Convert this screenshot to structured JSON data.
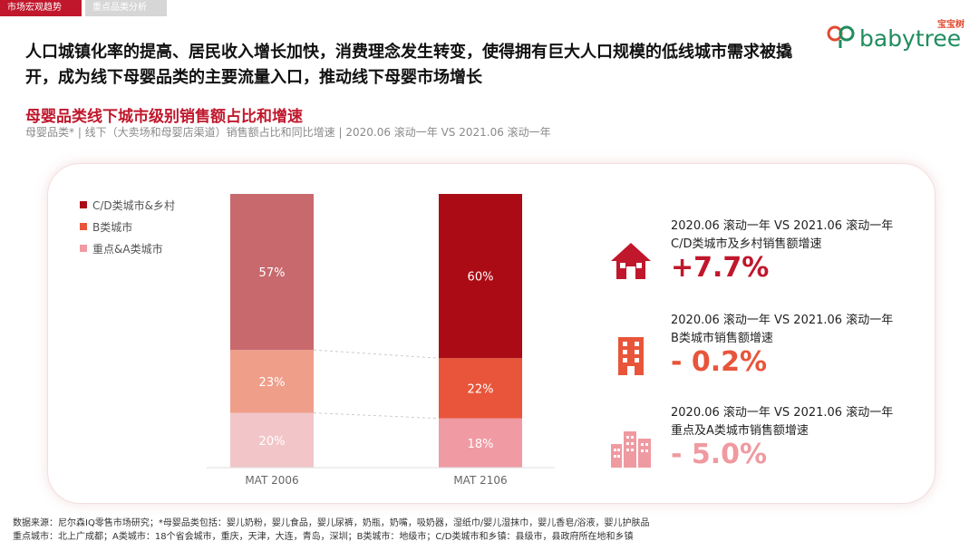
{
  "tabs": [
    "市场宏观趋势",
    "重点品类分析"
  ],
  "logo": {
    "cn": "宝宝树",
    "en": "babytree"
  },
  "headline": "人口城镇化率的提高、居民收入增长加快，消费理念发生转变，使得拥有巨大人口规模的低线城市需求被撬开，成为线下母婴品类的主要流量入口，推动线下母婴市场增长",
  "colors": {
    "accent": "#c0172c",
    "mat2006": [
      "#f2c6c8",
      "#ef9e8a",
      "#c8696e"
    ],
    "mat2106": [
      "#f09aa3",
      "#e8553a",
      "#ab0b14"
    ],
    "positive": "#c0172c",
    "neutral": "#e8553a",
    "negative": "#ef9aa0"
  },
  "chart_data": {
    "type": "bar",
    "stacked": true,
    "title": "母婴品类线下城市级别销售额占比和增速",
    "subtitle": "母婴品类* | 线下（大卖场和母婴店渠道）销售额占比和同比增速 | 2020.06 滚动一年 VS 2021.06 滚动一年",
    "categories": [
      "MAT 2006",
      "MAT 2106"
    ],
    "series": [
      {
        "name": "重点&A类城市",
        "values": [
          20,
          18
        ],
        "labels": [
          "20%",
          "18%"
        ]
      },
      {
        "name": "B类城市",
        "values": [
          23,
          22
        ],
        "labels": [
          "23%",
          "22%"
        ]
      },
      {
        "name": "C/D类城市&乡村",
        "values": [
          57,
          60
        ],
        "labels": [
          "57%",
          "60%"
        ]
      }
    ],
    "legend": [
      "C/D类城市&乡村",
      "B类城市",
      "重点&A类城市"
    ],
    "ylim": [
      0,
      100
    ]
  },
  "stats": [
    {
      "period": "2020.06 滚动一年 VS 2021.06 滚动一年",
      "label": "C/D类城市及乡村销售额增速",
      "value": "+7.7%",
      "icon": "house-icon"
    },
    {
      "period": "2020.06 滚动一年 VS 2021.06 滚动一年",
      "label": "B类城市销售额增速",
      "value": "- 0.2%",
      "icon": "building-icon"
    },
    {
      "period": "2020.06 滚动一年 VS 2021.06 滚动一年",
      "label": "重点及A类城市销售额增速",
      "value": "- 5.0%",
      "icon": "city-icon"
    }
  ],
  "footer": {
    "line1": "数据来源：尼尔森IQ零售市场研究；*母婴品类包括：婴儿奶粉，婴儿食品，婴儿尿裤，奶瓶，奶嘴，吸奶器，湿纸巾/婴儿湿抹巾，婴儿香皂/浴液，婴儿护肤品",
    "line2": "重点城市：北上广成都；A类城市：18个省会城市，重庆，天津，大连，青岛，深圳；B类城市：地级市；C/D类城市和乡镇：县级市，县政府所在地和乡镇"
  }
}
